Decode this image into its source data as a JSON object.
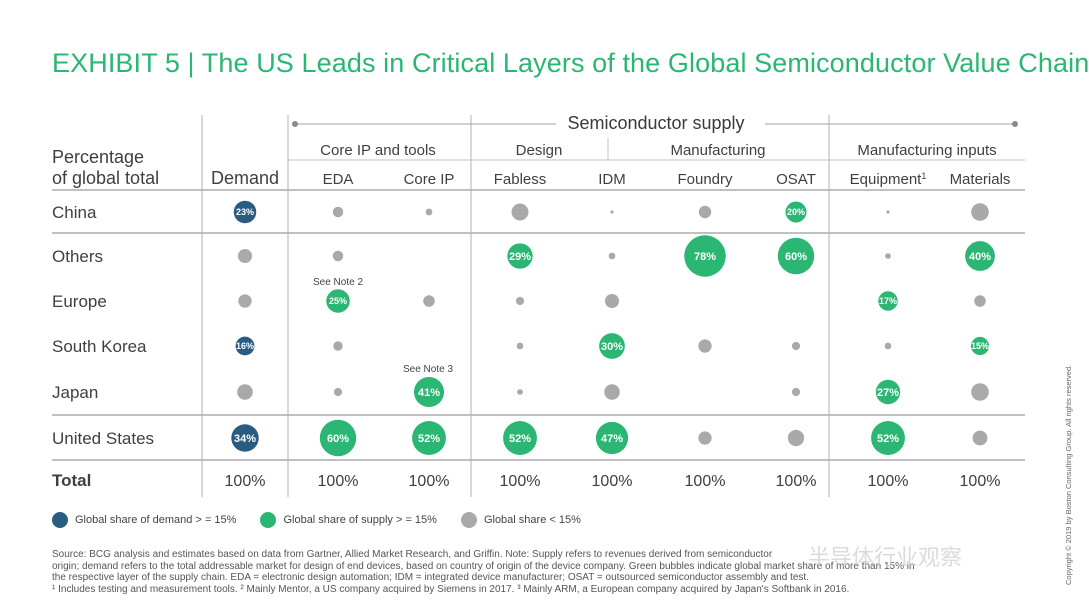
{
  "title": "EXHIBIT 5 | The US Leads in Critical Layers of the Global Semiconductor Value Chain",
  "header": {
    "row_header": [
      "Percentage",
      "of global total"
    ],
    "demand_label": "Demand",
    "supply_label": "Semiconductor supply",
    "groups": [
      "Core IP and tools",
      "Design",
      "Manufacturing",
      "Manufacturing inputs"
    ]
  },
  "notes": {
    "eda_europe": "See Note 2",
    "coreip_japan": "See Note 3"
  },
  "legend": [
    {
      "label": "Global share of demand > = 15%",
      "color": "#2a5b80"
    },
    {
      "label": "Global share of supply > = 15%",
      "color": "#2bb673"
    },
    {
      "label": "Global share  < 15%",
      "color": "#a9a9a9"
    }
  ],
  "footnotes": [
    "Source: BCG analysis and estimates based on data from Gartner, Allied Market Research, and Griffin. Note: Supply refers to revenues derived from semiconductor",
    "origin; demand refers to the total addressable market for design of end devices, based on country of origin of the device company. Green bubbles indicate global market share of more than 15% in",
    "the respective layer of the supply chain. EDA = electronic design automation; IDM = integrated device manufacturer; OSAT = outsourced semiconductor assembly and test.",
    "¹ Includes testing and measurement tools. ² Mainly Mentor, a US company acquired by Siemens in 2017. ³ Mainly ARM, a European company acquired by Japan's Softbank in 2016."
  ],
  "copyright": "Copyright © 2019 by Boston Consulting Group. All rights reserved.",
  "watermark": "半导体行业观察",
  "chart_data": {
    "type": "table",
    "columns": [
      "Demand",
      "EDA",
      "Core IP",
      "Fabless",
      "IDM",
      "Foundry",
      "OSAT",
      "Equipment",
      "Materials"
    ],
    "column_superscripts": {
      "Equipment": "1"
    },
    "rows": [
      "China",
      "Others",
      "Europe",
      "South Korea",
      "Japan",
      "United States"
    ],
    "total_label": "Total",
    "totals": [
      "100%",
      "100%",
      "100%",
      "100%",
      "100%",
      "100%",
      "100%",
      "100%",
      "100%"
    ],
    "labeled_values": {
      "China": {
        "Demand": 23,
        "OSAT": 20
      },
      "Others": {
        "Fabless": 29,
        "Foundry": 78,
        "OSAT": 60,
        "Materials": 40
      },
      "Europe": {
        "EDA": 25,
        "Equipment": 17
      },
      "South Korea": {
        "Demand": 16,
        "IDM": 30,
        "Materials": 15
      },
      "Japan": {
        "Core IP": 41,
        "Equipment": 27
      },
      "United States": {
        "Demand": 34,
        "EDA": 60,
        "Core IP": 52,
        "Fabless": 52,
        "IDM": 47,
        "Equipment": 52
      }
    },
    "cells": [
      {
        "row": "China",
        "col": "Demand",
        "value": 23,
        "category": "demand"
      },
      {
        "row": "China",
        "col": "EDA",
        "value": 5,
        "category": "gray"
      },
      {
        "row": "China",
        "col": "Core IP",
        "value": 2,
        "category": "gray"
      },
      {
        "row": "China",
        "col": "Fabless",
        "value": 13,
        "category": "gray"
      },
      {
        "row": "China",
        "col": "IDM",
        "value": 0.3,
        "category": "gray"
      },
      {
        "row": "China",
        "col": "Foundry",
        "value": 7,
        "category": "gray"
      },
      {
        "row": "China",
        "col": "OSAT",
        "value": 20,
        "category": "supply"
      },
      {
        "row": "China",
        "col": "Equipment",
        "value": 0.5,
        "category": "gray"
      },
      {
        "row": "China",
        "col": "Materials",
        "value": 14,
        "category": "gray"
      },
      {
        "row": "Others",
        "col": "Demand",
        "value": 9,
        "category": "gray"
      },
      {
        "row": "Others",
        "col": "EDA",
        "value": 5,
        "category": "gray"
      },
      {
        "row": "Others",
        "col": "Fabless",
        "value": 29,
        "category": "supply"
      },
      {
        "row": "Others",
        "col": "IDM",
        "value": 2,
        "category": "gray"
      },
      {
        "row": "Others",
        "col": "Foundry",
        "value": 78,
        "category": "supply"
      },
      {
        "row": "Others",
        "col": "OSAT",
        "value": 60,
        "category": "supply"
      },
      {
        "row": "Others",
        "col": "Equipment",
        "value": 1.5,
        "category": "gray"
      },
      {
        "row": "Others",
        "col": "Materials",
        "value": 40,
        "category": "supply"
      },
      {
        "row": "Europe",
        "col": "Demand",
        "value": 8,
        "category": "gray"
      },
      {
        "row": "Europe",
        "col": "EDA",
        "value": 25,
        "category": "supply"
      },
      {
        "row": "Europe",
        "col": "Core IP",
        "value": 6,
        "category": "gray"
      },
      {
        "row": "Europe",
        "col": "Fabless",
        "value": 3,
        "category": "gray"
      },
      {
        "row": "Europe",
        "col": "IDM",
        "value": 9,
        "category": "gray"
      },
      {
        "row": "Europe",
        "col": "Equipment",
        "value": 17,
        "category": "supply"
      },
      {
        "row": "Europe",
        "col": "Materials",
        "value": 6,
        "category": "gray"
      },
      {
        "row": "South Korea",
        "col": "Demand",
        "value": 16,
        "category": "demand"
      },
      {
        "row": "South Korea",
        "col": "EDA",
        "value": 4,
        "category": "gray"
      },
      {
        "row": "South Korea",
        "col": "Fabless",
        "value": 2,
        "category": "gray"
      },
      {
        "row": "South Korea",
        "col": "IDM",
        "value": 30,
        "category": "supply"
      },
      {
        "row": "South Korea",
        "col": "Foundry",
        "value": 8,
        "category": "gray"
      },
      {
        "row": "South Korea",
        "col": "OSAT",
        "value": 3,
        "category": "gray"
      },
      {
        "row": "South Korea",
        "col": "Equipment",
        "value": 2,
        "category": "gray"
      },
      {
        "row": "South Korea",
        "col": "Materials",
        "value": 15,
        "category": "supply"
      },
      {
        "row": "Japan",
        "col": "Demand",
        "value": 11,
        "category": "gray"
      },
      {
        "row": "Japan",
        "col": "EDA",
        "value": 3,
        "category": "gray"
      },
      {
        "row": "Japan",
        "col": "Core IP",
        "value": 41,
        "category": "supply"
      },
      {
        "row": "Japan",
        "col": "Fabless",
        "value": 1.5,
        "category": "gray"
      },
      {
        "row": "Japan",
        "col": "IDM",
        "value": 11,
        "category": "gray"
      },
      {
        "row": "Japan",
        "col": "OSAT",
        "value": 3,
        "category": "gray"
      },
      {
        "row": "Japan",
        "col": "Equipment",
        "value": 27,
        "category": "supply"
      },
      {
        "row": "Japan",
        "col": "Materials",
        "value": 14,
        "category": "gray"
      },
      {
        "row": "United States",
        "col": "Demand",
        "value": 34,
        "category": "demand"
      },
      {
        "row": "United States",
        "col": "EDA",
        "value": 60,
        "category": "supply"
      },
      {
        "row": "United States",
        "col": "Core IP",
        "value": 52,
        "category": "supply"
      },
      {
        "row": "United States",
        "col": "Fabless",
        "value": 52,
        "category": "supply"
      },
      {
        "row": "United States",
        "col": "IDM",
        "value": 47,
        "category": "supply"
      },
      {
        "row": "United States",
        "col": "Foundry",
        "value": 8,
        "category": "gray"
      },
      {
        "row": "United States",
        "col": "OSAT",
        "value": 12,
        "category": "gray"
      },
      {
        "row": "United States",
        "col": "Equipment",
        "value": 52,
        "category": "supply"
      },
      {
        "row": "United States",
        "col": "Materials",
        "value": 10,
        "category": "gray"
      }
    ]
  }
}
